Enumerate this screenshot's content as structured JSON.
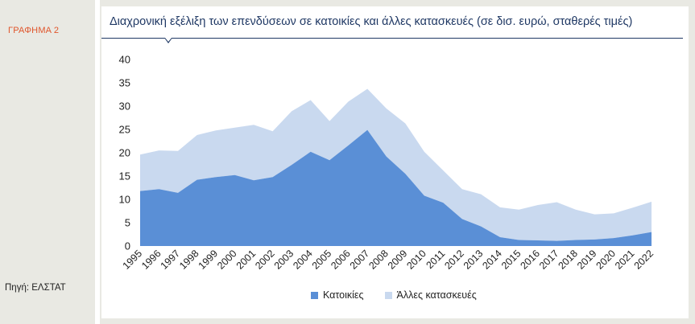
{
  "figure_label": "ΓΡΑΦΗΜΑ 2",
  "source": "Πηγή: ΕΛΣΤΑΤ",
  "colors": {
    "housing": "#5a8fd6",
    "other": "#c9d9ef",
    "title": "#1f3864",
    "label": "#e0552b"
  },
  "chart_data": {
    "type": "area",
    "stacked": true,
    "title": "Διαχρονική εξέλιξη των επενδύσεων σε κατοικίες και άλλες κατασκευές (σε δισ. ευρώ, σταθερές τιμές)",
    "xlabel": "",
    "ylabel": "",
    "ylim": [
      0,
      40
    ],
    "yticks": [
      "0",
      "5",
      "10",
      "15",
      "20",
      "25",
      "30",
      "35",
      "40"
    ],
    "grid": false,
    "legend_position": "bottom",
    "categories": [
      "1995",
      "1996",
      "1997",
      "1998",
      "1999",
      "2000",
      "2001",
      "2002",
      "2003",
      "2004",
      "2005",
      "2006",
      "2007",
      "2008",
      "2009",
      "2010",
      "2011",
      "2012",
      "2013",
      "2014",
      "2015",
      "2016",
      "2017",
      "2018",
      "2019",
      "2020",
      "2021",
      "2022"
    ],
    "series": [
      {
        "name": "Κατοικίες",
        "values": [
          11.8,
          12.2,
          11.4,
          14.2,
          14.8,
          15.2,
          14.1,
          14.8,
          17.4,
          20.2,
          18.4,
          21.6,
          24.9,
          19.2,
          15.5,
          10.8,
          9.3,
          5.8,
          4.2,
          1.9,
          1.3,
          1.2,
          1.1,
          1.3,
          1.4,
          1.7,
          2.3,
          3.0
        ]
      },
      {
        "name": "Άλλες κατασκευές",
        "values": [
          7.8,
          8.3,
          9.0,
          9.6,
          10.0,
          10.2,
          11.9,
          9.8,
          11.5,
          11.1,
          8.4,
          9.4,
          8.8,
          10.3,
          10.8,
          9.4,
          6.9,
          6.4,
          6.9,
          6.4,
          6.5,
          7.6,
          8.3,
          6.5,
          5.4,
          5.3,
          5.9,
          6.5
        ]
      }
    ]
  }
}
